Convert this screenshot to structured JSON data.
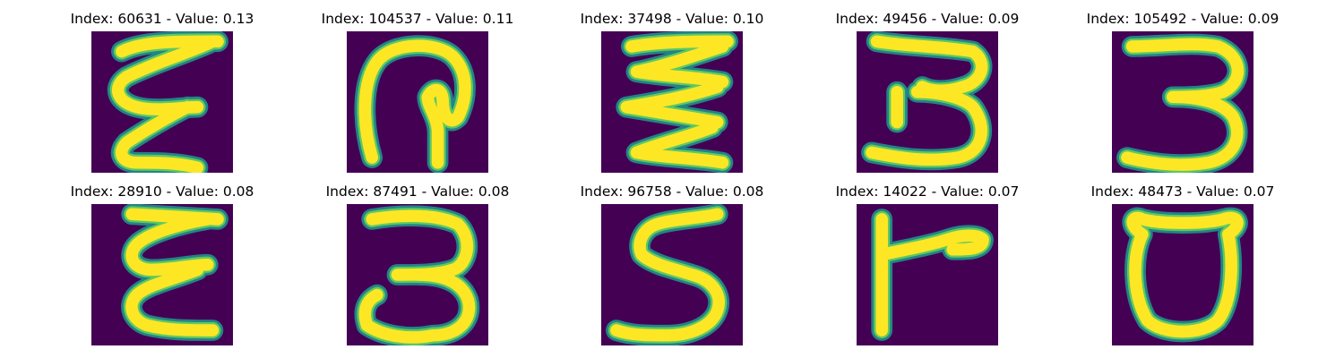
{
  "colors": {
    "background": "#440154",
    "stroke_edge": "#21918c",
    "stroke_mid": "#5ec962",
    "stroke_core": "#fde725"
  },
  "panels": [
    {
      "title": "Index: 60631 - Value: 0.13",
      "index": 60631,
      "value": 0.13,
      "glyph": "script-e"
    },
    {
      "title": "Index: 104537 - Value: 0.11",
      "index": 104537,
      "value": 0.11,
      "glyph": "loop-hook"
    },
    {
      "title": "Index: 37498 - Value: 0.10",
      "index": 37498,
      "value": 0.1,
      "glyph": "zigzag"
    },
    {
      "title": "Index: 49456 - Value: 0.09",
      "index": 49456,
      "value": 0.09,
      "glyph": "three-thin"
    },
    {
      "title": "Index: 105492 - Value: 0.09",
      "index": 105492,
      "value": 0.09,
      "glyph": "three-bold"
    },
    {
      "title": "Index: 28910 - Value: 0.08",
      "index": 28910,
      "value": 0.08,
      "glyph": "script-e-tall"
    },
    {
      "title": "Index: 87491 - Value: 0.08",
      "index": 87491,
      "value": 0.08,
      "glyph": "three-flat"
    },
    {
      "title": "Index: 96758 - Value: 0.08",
      "index": 96758,
      "value": 0.08,
      "glyph": "five"
    },
    {
      "title": "Index: 14022 - Value: 0.07",
      "index": 14022,
      "value": 0.07,
      "glyph": "t-shape"
    },
    {
      "title": "Index: 48473 - Value: 0.07",
      "index": 48473,
      "value": 0.07,
      "glyph": "cup"
    }
  ]
}
